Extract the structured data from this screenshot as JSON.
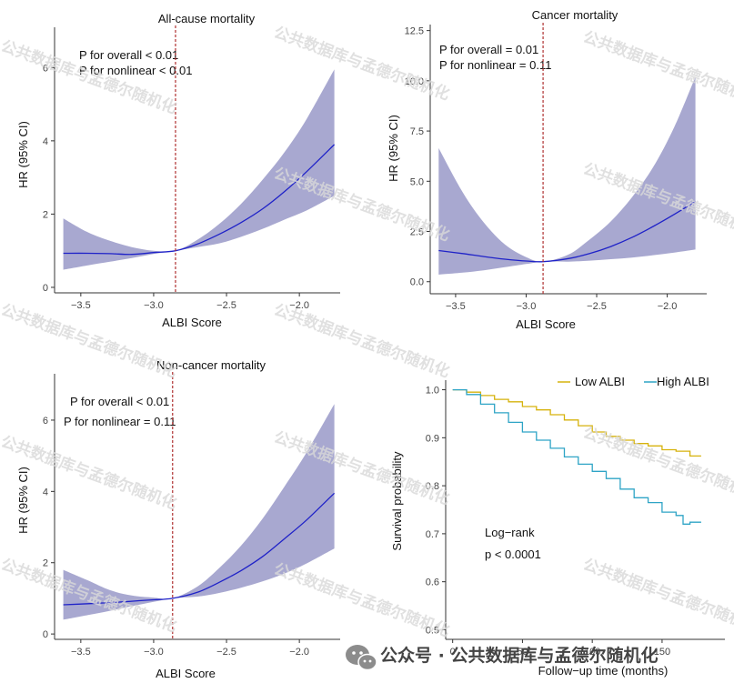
{
  "colors": {
    "ribbon": "#a8a8d0",
    "hr_line": "#1f22c8",
    "ref_line": "#b03030",
    "axis": "#333333",
    "low_albi": "#d6b20c",
    "high_albi": "#2ea4c6"
  },
  "watermark": {
    "text": "公共数据库与孟德尔随机化"
  },
  "footer": {
    "icon": "wechat-icon",
    "text": "公众号 · 公共数据库与孟德尔随机化"
  },
  "chart_data": [
    {
      "id": "allcause",
      "type": "line",
      "title": "All-cause mortality",
      "xlabel": "ALBI Score",
      "ylabel": "HR (95% CI)",
      "xlim": [
        -3.68,
        -1.72
      ],
      "ylim": [
        -0.15,
        7.1
      ],
      "xticks": [
        -3.5,
        -3.0,
        -2.5,
        -2.0
      ],
      "xtick_labels": [
        "−3.5",
        "−3.0",
        "−2.5",
        "−2.0"
      ],
      "yticks": [
        0,
        2,
        4,
        6
      ],
      "ytick_labels": [
        "0",
        "2",
        "4",
        "6"
      ],
      "ref_x": -2.85,
      "annotations": [
        "P for overall < 0.01",
        "P for nonlinear < 0.01"
      ],
      "series": [
        {
          "x": [
            -3.62,
            -3.45,
            -3.3,
            -3.15,
            -3.0,
            -2.85,
            -2.7,
            -2.55,
            -2.4,
            -2.25,
            -2.1,
            -1.95,
            -1.76
          ],
          "hr": [
            0.93,
            0.93,
            0.92,
            0.9,
            0.95,
            1.0,
            1.18,
            1.45,
            1.77,
            2.15,
            2.62,
            3.16,
            3.9
          ],
          "lower": [
            0.48,
            0.6,
            0.7,
            0.8,
            0.91,
            1.0,
            1.1,
            1.2,
            1.38,
            1.6,
            1.85,
            2.1,
            2.5
          ],
          "upper": [
            1.88,
            1.5,
            1.27,
            1.1,
            1.0,
            1.0,
            1.3,
            1.73,
            2.28,
            2.95,
            3.7,
            4.6,
            5.95
          ]
        }
      ]
    },
    {
      "id": "cancer",
      "type": "line",
      "title": "Cancer mortality",
      "xlabel": "ALBI Score",
      "ylabel": "HR (95% CI)",
      "xlim": [
        -3.68,
        -1.72
      ],
      "ylim": [
        -0.6,
        12.8
      ],
      "xticks": [
        -3.5,
        -3.0,
        -2.5,
        -2.0
      ],
      "xtick_labels": [
        "−3.5",
        "−3.0",
        "−2.5",
        "−2.0"
      ],
      "yticks": [
        0,
        2.5,
        5,
        7.5,
        10,
        12.5
      ],
      "ytick_labels": [
        "0.0",
        "2.5",
        "5.0",
        "7.5",
        "10.0",
        "12.5"
      ],
      "ref_x": -2.88,
      "annotations": [
        "P for overall = 0.01",
        "P for nonlinear = 0.11"
      ],
      "series": [
        {
          "x": [
            -3.62,
            -3.45,
            -3.3,
            -3.15,
            -3.0,
            -2.88,
            -2.7,
            -2.55,
            -2.4,
            -2.25,
            -2.1,
            -1.95,
            -1.8
          ],
          "hr": [
            1.55,
            1.4,
            1.25,
            1.12,
            1.03,
            1.0,
            1.15,
            1.4,
            1.75,
            2.2,
            2.75,
            3.35,
            4.0
          ],
          "lower": [
            0.35,
            0.45,
            0.57,
            0.72,
            0.88,
            1.0,
            1.0,
            1.05,
            1.12,
            1.2,
            1.32,
            1.45,
            1.6
          ],
          "upper": [
            6.65,
            4.45,
            2.95,
            1.85,
            1.22,
            1.0,
            1.35,
            2.1,
            3.0,
            4.2,
            5.7,
            7.7,
            10.2
          ]
        }
      ]
    },
    {
      "id": "noncancer",
      "type": "line",
      "title": "Non-cancer mortality",
      "xlabel": "ALBI Score",
      "ylabel": "HR (95% CI)",
      "xlim": [
        -3.68,
        -1.72
      ],
      "ylim": [
        -0.15,
        7.3
      ],
      "xticks": [
        -3.5,
        -3.0,
        -2.5,
        -2.0
      ],
      "xtick_labels": [
        "−3.5",
        "−3.0",
        "−2.5",
        "−2.0"
      ],
      "yticks": [
        0,
        2,
        4,
        6
      ],
      "ytick_labels": [
        "0",
        "2",
        "4",
        "6"
      ],
      "ref_x": -2.87,
      "annotations": [
        "P for overall < 0.01",
        "P for nonlinear = 0.11"
      ],
      "series": [
        {
          "x": [
            -3.62,
            -3.45,
            -3.3,
            -3.15,
            -3.0,
            -2.87,
            -2.7,
            -2.55,
            -2.4,
            -2.25,
            -2.1,
            -1.95,
            -1.76
          ],
          "hr": [
            0.82,
            0.85,
            0.88,
            0.92,
            0.96,
            1.0,
            1.17,
            1.45,
            1.78,
            2.18,
            2.68,
            3.2,
            3.95
          ],
          "lower": [
            0.4,
            0.53,
            0.65,
            0.78,
            0.9,
            1.0,
            1.05,
            1.15,
            1.3,
            1.48,
            1.7,
            1.98,
            2.4
          ],
          "upper": [
            1.8,
            1.5,
            1.23,
            1.08,
            1.02,
            1.0,
            1.33,
            1.85,
            2.48,
            3.25,
            4.15,
            5.1,
            6.45
          ]
        }
      ]
    },
    {
      "id": "km",
      "type": "line",
      "xlabel": "Follow−up time (months)",
      "ylabel": "Survival probability",
      "xlim": [
        -5,
        195
      ],
      "ylim": [
        0.48,
        1.02
      ],
      "xticks": [
        0,
        50,
        100,
        150
      ],
      "xtick_labels": [
        "0",
        "50",
        "100",
        "150"
      ],
      "yticks": [
        0.5,
        0.6,
        0.7,
        0.8,
        0.9,
        1.0
      ],
      "ytick_labels": [
        "0.5",
        "0.6",
        "0.7",
        "0.8",
        "0.9",
        "1.0"
      ],
      "annotations": [
        "Log−rank",
        "p < 0.0001"
      ],
      "series": [
        {
          "name": "Low ALBI",
          "color_key": "low_albi",
          "x": [
            0,
            10,
            20,
            30,
            40,
            50,
            60,
            70,
            80,
            90,
            100,
            110,
            120,
            130,
            140,
            150,
            160,
            170,
            178
          ],
          "y": [
            1.0,
            0.995,
            0.988,
            0.98,
            0.975,
            0.965,
            0.958,
            0.948,
            0.937,
            0.925,
            0.912,
            0.903,
            0.895,
            0.888,
            0.883,
            0.875,
            0.872,
            0.862,
            0.862
          ]
        },
        {
          "name": "High ALBI",
          "color_key": "high_albi",
          "x": [
            0,
            10,
            20,
            30,
            40,
            50,
            60,
            70,
            80,
            90,
            100,
            110,
            120,
            130,
            140,
            150,
            160,
            165,
            170,
            178
          ],
          "y": [
            1.0,
            0.99,
            0.97,
            0.952,
            0.932,
            0.912,
            0.895,
            0.878,
            0.86,
            0.845,
            0.83,
            0.815,
            0.793,
            0.775,
            0.765,
            0.745,
            0.738,
            0.72,
            0.724,
            0.724
          ]
        }
      ]
    }
  ]
}
